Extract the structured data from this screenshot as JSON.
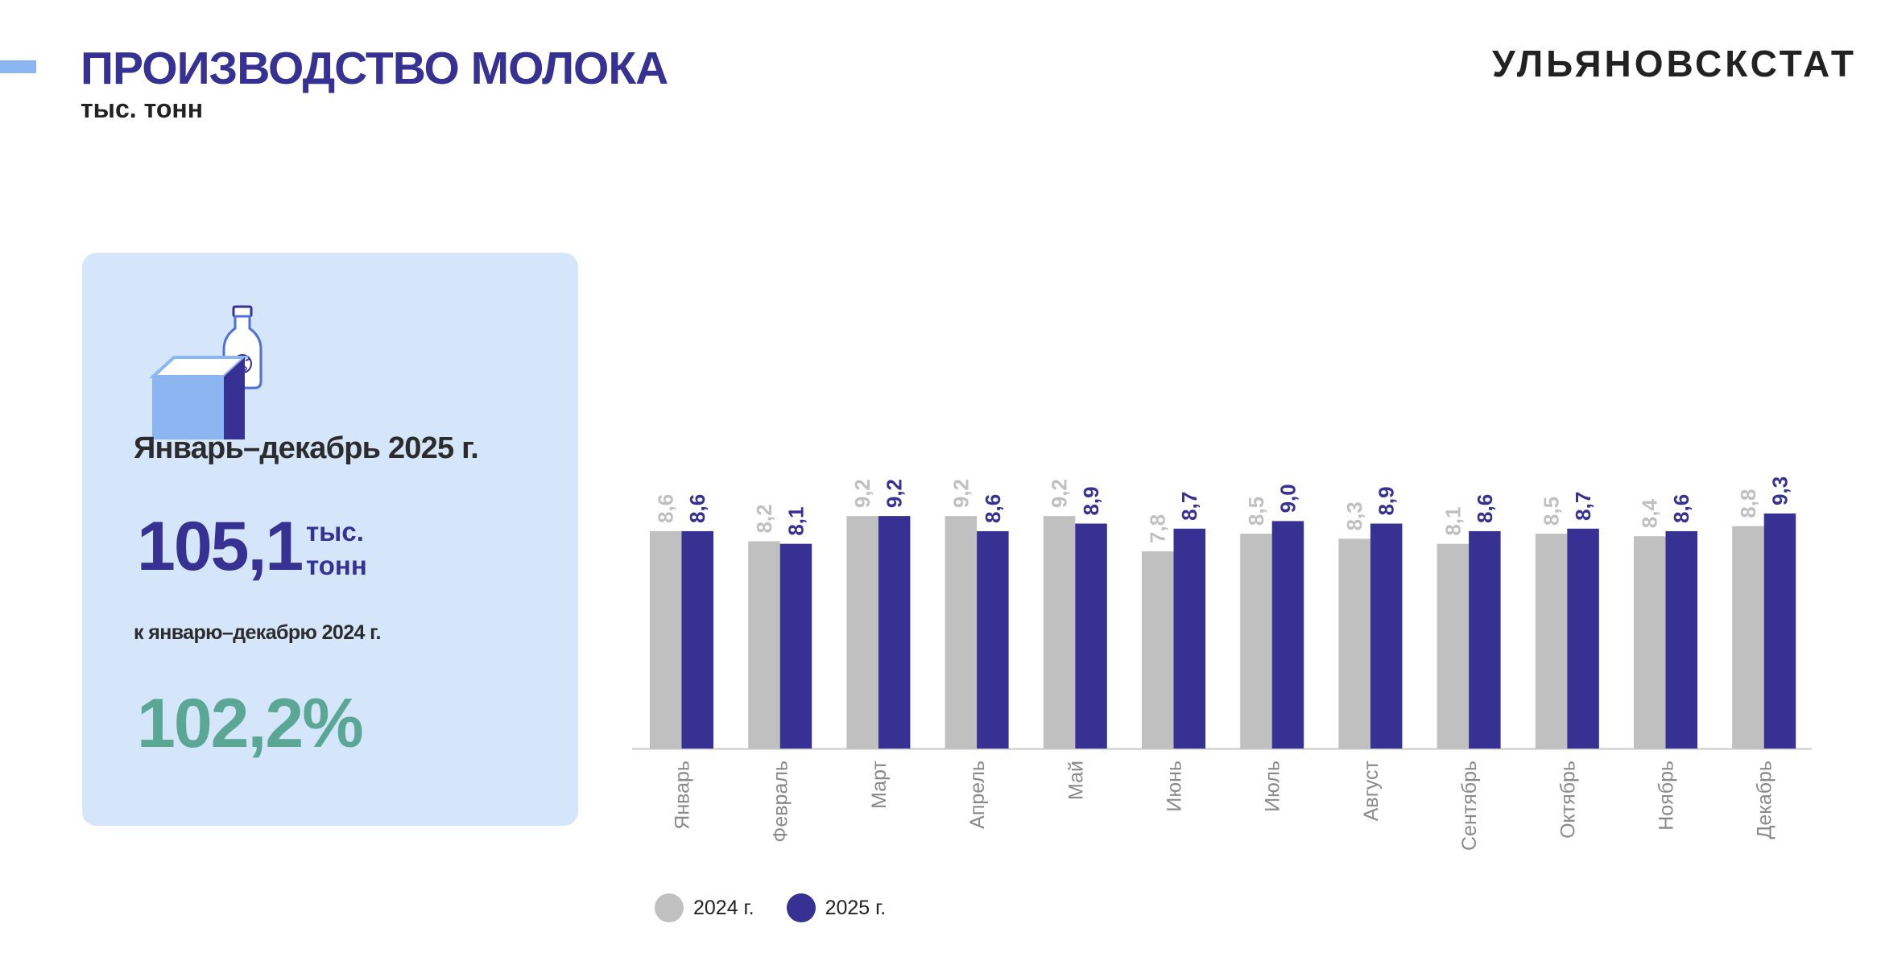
{
  "header": {
    "title": "ПРОИЗВОДСТВО МОЛОКА",
    "subtitle": "тыс. тонн",
    "org": "УЛЬЯНОВСКСТАТ"
  },
  "summary": {
    "period": "Январь–декабрь 2025 г.",
    "total": "105,1",
    "unit": "тыс. тонн",
    "compare_label": "к январю–декабрю 2024 г.",
    "percent": "102,2%",
    "icon": "milk-carton-bottle-icon"
  },
  "colors": {
    "series_2024": "#c0c0c0",
    "series_2025": "#363192",
    "accent": "#8cb6f1",
    "card_bg": "#d5e6fb",
    "percent": "#5ba795"
  },
  "chart_data": {
    "type": "bar",
    "categories": [
      "Январь",
      "Февраль",
      "Март",
      "Апрель",
      "Май",
      "Июнь",
      "Июль",
      "Август",
      "Сентябрь",
      "Октябрь",
      "Ноябрь",
      "Декабрь"
    ],
    "series": [
      {
        "name": "2024 г.",
        "color": "#c0c0c0",
        "values": [
          8.6,
          8.2,
          9.2,
          9.2,
          9.2,
          7.8,
          8.5,
          8.3,
          8.1,
          8.5,
          8.4,
          8.8
        ],
        "labels": [
          "8,6",
          "8,2",
          "9,2",
          "9,2",
          "9,2",
          "7,8",
          "8,5",
          "8,3",
          "8,1",
          "8,5",
          "8,4",
          "8,8"
        ]
      },
      {
        "name": "2025 г.",
        "color": "#363192",
        "values": [
          8.6,
          8.1,
          9.2,
          8.6,
          8.9,
          8.7,
          9.0,
          8.9,
          8.6,
          8.7,
          8.6,
          9.3
        ],
        "labels": [
          "8,6",
          "8,1",
          "9,2",
          "8,6",
          "8,9",
          "8,7",
          "9,0",
          "8,9",
          "8,6",
          "8,7",
          "8,6",
          "9,3"
        ]
      }
    ],
    "legend_position": "bottom-left",
    "grid": false
  }
}
